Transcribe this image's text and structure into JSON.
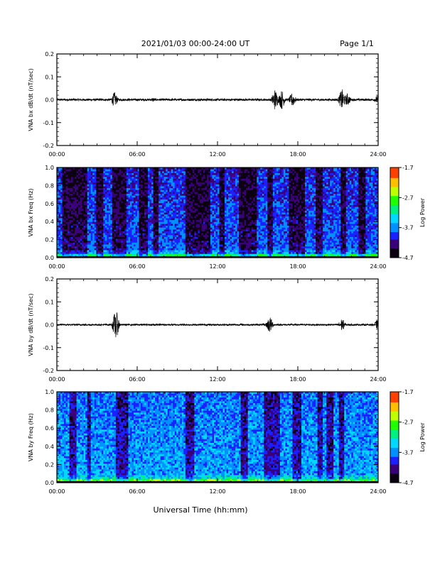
{
  "header": {
    "title": "2021/01/03  00:00-24:00 UT",
    "page": "Page 1/1"
  },
  "footer": {
    "xlabel": "Universal Time (hh:mm)"
  },
  "colors": {
    "trace": "#000000",
    "axis": "#000000",
    "colormap": [
      "#0a0010",
      "#3a007a",
      "#1a20ff",
      "#0090ff",
      "#00d8ff",
      "#00f080",
      "#20ff00",
      "#c0ff00",
      "#ffc000",
      "#ff4000",
      "#ff0000"
    ]
  },
  "chart_data": [
    {
      "type": "line",
      "panel": "bx-time-series",
      "xlabel": "",
      "ylabel": "VNA bx dB/dt (nT/sec)",
      "xlim": [
        "00:00",
        "24:00"
      ],
      "ylim": [
        -0.2,
        0.2
      ],
      "xticks": [
        "00:00",
        "06:00",
        "12:00",
        "18:00",
        "24:00"
      ],
      "yticks": [
        "0.2",
        "0.1",
        "0.0",
        "-0.1",
        "-0.2"
      ],
      "baseline_noise": 0.005,
      "events": [
        {
          "t": 4.3,
          "amp": 0.035
        },
        {
          "t": 7.2,
          "amp": 0.01
        },
        {
          "t": 16.3,
          "amp": 0.05
        },
        {
          "t": 16.8,
          "amp": 0.045
        },
        {
          "t": 17.6,
          "amp": 0.035
        },
        {
          "t": 21.3,
          "amp": 0.05
        },
        {
          "t": 21.7,
          "amp": 0.03
        },
        {
          "t": 23.95,
          "amp": 0.02
        }
      ]
    },
    {
      "type": "heatmap",
      "panel": "bx-spectrogram",
      "ylabel": "VNA bx Freq (Hz)",
      "xlim": [
        "00:00",
        "24:00"
      ],
      "ylim": [
        0.0,
        1.0
      ],
      "xticks": [
        "00:00",
        "06:00",
        "12:00",
        "18:00",
        "24:00"
      ],
      "yticks": [
        "1.0",
        "0.8",
        "0.6",
        "0.4",
        "0.2",
        "0.0"
      ],
      "colorbar": {
        "label": "Log Power",
        "range": [
          -4.7,
          -1.7
        ],
        "ticks": [
          "-1.7",
          "-2.7",
          "-3.7",
          "-4.7"
        ]
      },
      "dark_bands_hours": [
        [
          0.4,
          2.2
        ],
        [
          2.9,
          3.4
        ],
        [
          4.2,
          5.2
        ],
        [
          6.2,
          6.8
        ],
        [
          7.2,
          7.6
        ],
        [
          9.6,
          11.4
        ],
        [
          12.1,
          12.5
        ],
        [
          13.6,
          14.9
        ],
        [
          15.8,
          16.1
        ],
        [
          17.4,
          18.5
        ],
        [
          19.3,
          19.9
        ],
        [
          21.2,
          21.6
        ],
        [
          22.5,
          23.1
        ]
      ]
    },
    {
      "type": "line",
      "panel": "by-time-series",
      "ylabel": "VNA by dB/dt (nT/sec)",
      "xlim": [
        "00:00",
        "24:00"
      ],
      "ylim": [
        -0.2,
        0.2
      ],
      "xticks": [
        "00:00",
        "06:00",
        "12:00",
        "18:00",
        "24:00"
      ],
      "yticks": [
        "0.2",
        "0.1",
        "0.0",
        "-0.1",
        "-0.2"
      ],
      "baseline_noise": 0.004,
      "events": [
        {
          "t": 4.4,
          "amp": 0.07
        },
        {
          "t": 15.9,
          "amp": 0.04
        },
        {
          "t": 21.3,
          "amp": 0.03
        },
        {
          "t": 23.9,
          "amp": 0.02
        }
      ]
    },
    {
      "type": "heatmap",
      "panel": "by-spectrogram",
      "ylabel": "VNA by Freq (Hz)",
      "xlim": [
        "00:00",
        "24:00"
      ],
      "ylim": [
        0.0,
        1.0
      ],
      "xticks": [
        "00:00",
        "06:00",
        "12:00",
        "18:00",
        "24:00"
      ],
      "yticks": [
        "1.0",
        "0.8",
        "0.6",
        "0.4",
        "0.2",
        "0.0"
      ],
      "colorbar": {
        "label": "Log Power",
        "range": [
          -4.7,
          -1.7
        ],
        "ticks": [
          "-1.7",
          "-2.7",
          "-3.7",
          "-4.7"
        ]
      },
      "dark_bands_hours": [
        [
          0.9,
          1.5
        ],
        [
          2.3,
          2.5
        ],
        [
          4.4,
          5.3
        ],
        [
          9.6,
          10.2
        ],
        [
          13.7,
          14.3
        ],
        [
          15.5,
          16.7
        ],
        [
          17.6,
          18.3
        ],
        [
          19.5,
          19.9
        ],
        [
          20.2,
          20.7
        ],
        [
          21.1,
          21.5
        ]
      ]
    }
  ]
}
